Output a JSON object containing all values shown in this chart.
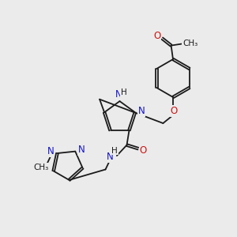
{
  "background_color": "#ebebeb",
  "bond_color": "#1a1a1a",
  "N_color": "#1414cc",
  "O_color": "#cc1414",
  "text_color": "#1a1a1a",
  "figsize": [
    3.0,
    3.0
  ],
  "dpi": 100,
  "xlim": [
    0,
    10
  ],
  "ylim": [
    0,
    10
  ]
}
